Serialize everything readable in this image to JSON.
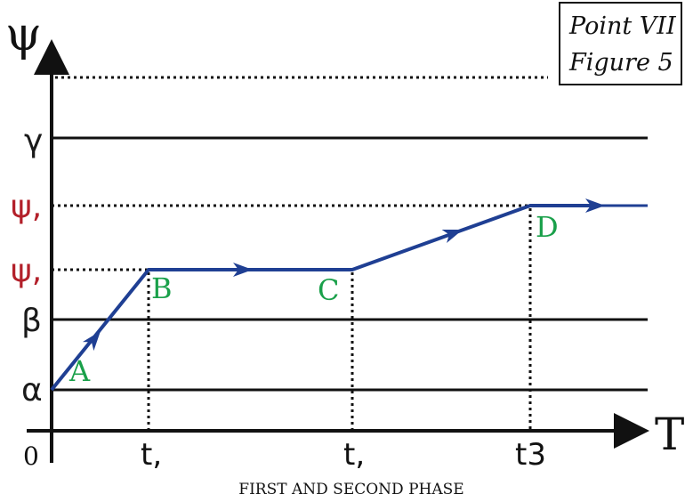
{
  "header_box": {
    "line1": "Point VII",
    "line2": "Figure 5"
  },
  "axes": {
    "y_label": "ψ",
    "x_label": "T",
    "origin_label": "0"
  },
  "y_levels": [
    {
      "label": "γ",
      "style": "solid",
      "color": "#1a1a1a"
    },
    {
      "label": "ψ,",
      "style": "dotted",
      "color": "#b3202a"
    },
    {
      "label": "ψ,",
      "style": "dotted",
      "color": "#b3202a"
    },
    {
      "label": "β",
      "style": "solid",
      "color": "#1a1a1a"
    },
    {
      "label": "α",
      "style": "solid",
      "color": "#1a1a1a"
    }
  ],
  "x_ticks": [
    "t,",
    "t,",
    "t3"
  ],
  "points": [
    "A",
    "B",
    "C",
    "D"
  ],
  "caption": "FIRST AND SECOND PHASE",
  "colors": {
    "path": "#1f3f93",
    "point_labels": "#1aa04a",
    "level_labels": "#b3202a",
    "axis": "#111111"
  }
}
